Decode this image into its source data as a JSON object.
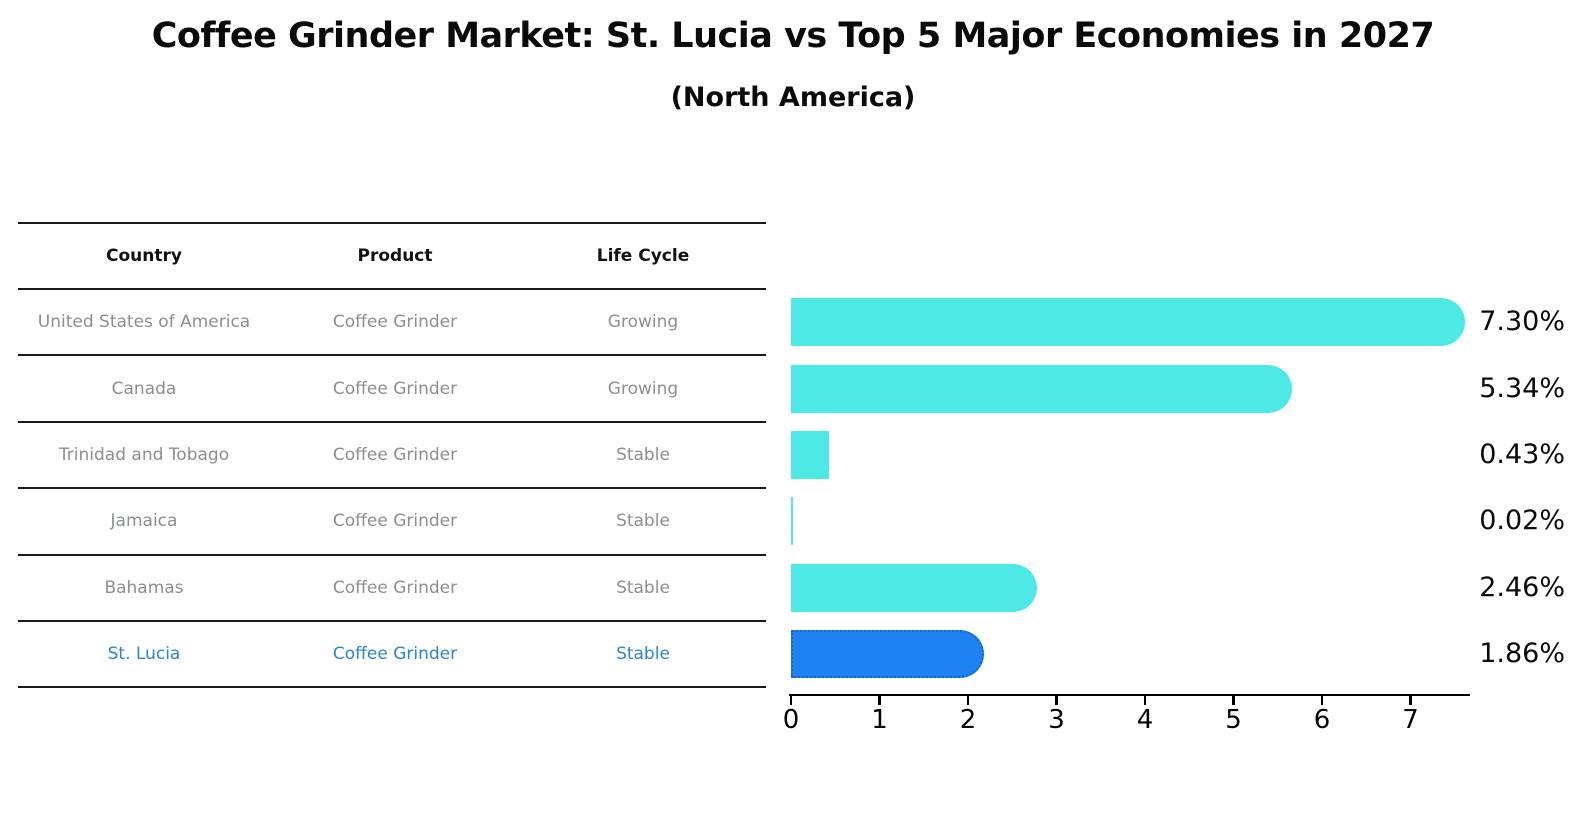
{
  "title": "Coffee Grinder Market: St. Lucia vs Top 5 Major Economies in 2027",
  "subtitle": "(North America)",
  "table": {
    "headers": [
      "Country",
      "Product",
      "Life Cycle"
    ],
    "rows": [
      {
        "country": "United States of America",
        "product": "Coffee Grinder",
        "life_cycle": "Growing",
        "highlighted": false
      },
      {
        "country": "Canada",
        "product": "Coffee Grinder",
        "life_cycle": "Growing",
        "highlighted": false
      },
      {
        "country": "Trinidad and Tobago",
        "product": "Coffee Grinder",
        "life_cycle": "Stable",
        "highlighted": false
      },
      {
        "country": "Jamaica",
        "product": "Coffee Grinder",
        "life_cycle": "Stable",
        "highlighted": false
      },
      {
        "country": "Bahamas",
        "product": "Coffee Grinder",
        "life_cycle": "Stable",
        "highlighted": false
      },
      {
        "country": "St. Lucia",
        "product": "Coffee Grinder",
        "life_cycle": "Stable",
        "highlighted": true
      }
    ]
  },
  "chart_data": {
    "type": "bar",
    "orientation": "horizontal",
    "title": "Coffee Grinder Market: St. Lucia vs Top 5 Major Economies in 2027",
    "subtitle": "(North America)",
    "categories": [
      "United States of America",
      "Canada",
      "Trinidad and Tobago",
      "Jamaica",
      "Bahamas",
      "St. Lucia"
    ],
    "values": [
      7.3,
      5.34,
      0.43,
      0.02,
      2.46,
      1.86
    ],
    "labels": [
      "7.30%",
      "5.34%",
      "0.43%",
      "0.02%",
      "2.46%",
      "1.86%"
    ],
    "unit": "percent",
    "x_ticks": [
      0,
      1,
      2,
      3,
      4,
      5,
      6,
      7
    ],
    "xlim": [
      0,
      7.7
    ],
    "grid": false,
    "legend": "none",
    "highlight_index": 5
  },
  "colors": {
    "bar": "#4DE9E5",
    "highlight_bar": "#1E82F0",
    "highlight_bar_border": "#1565D8",
    "highlight_text": "#2B87C8",
    "row_text": "#8B8F94",
    "heading_text": "#0A0A0A"
  }
}
